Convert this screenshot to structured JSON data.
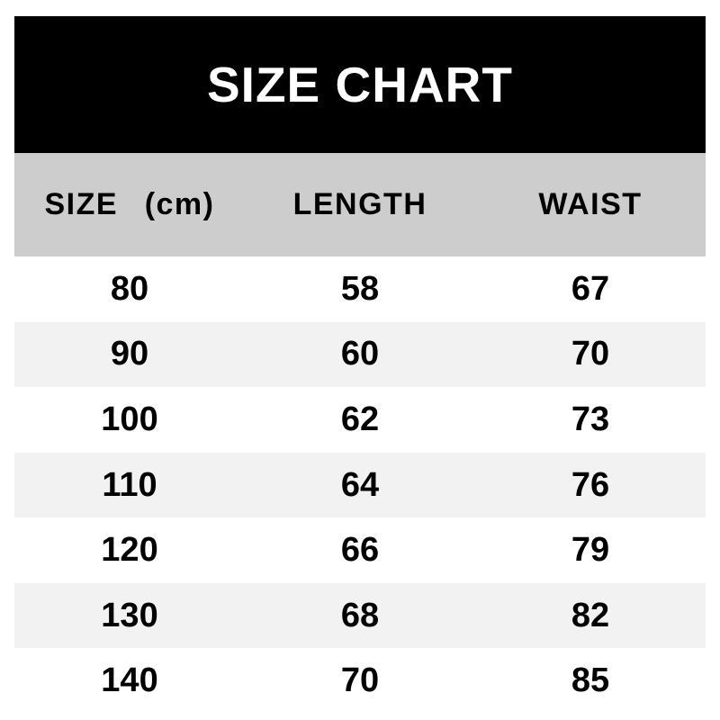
{
  "title": "SIZE CHART",
  "table": {
    "headers": [
      "SIZE (cm)",
      "LENGTH",
      "WAIST"
    ],
    "rows": [
      [
        "80",
        "58",
        "67"
      ],
      [
        "90",
        "60",
        "70"
      ],
      [
        "100",
        "62",
        "73"
      ],
      [
        "110",
        "64",
        "76"
      ],
      [
        "120",
        "66",
        "79"
      ],
      [
        "130",
        "68",
        "82"
      ],
      [
        "140",
        "70",
        "85"
      ]
    ]
  },
  "colors": {
    "page_bg": "#ffffff",
    "title_band_bg": "#000000",
    "title_text": "#ffffff",
    "header_band_bg": "#cdcdcd",
    "row_alt_bg": "#f2f2f2",
    "text": "#000000"
  },
  "chart_data": {
    "type": "table",
    "title": "SIZE CHART",
    "columns": [
      "SIZE (cm)",
      "LENGTH",
      "WAIST"
    ],
    "rows": [
      [
        80,
        58,
        67
      ],
      [
        90,
        60,
        70
      ],
      [
        100,
        62,
        73
      ],
      [
        110,
        64,
        76
      ],
      [
        120,
        66,
        79
      ],
      [
        130,
        68,
        82
      ],
      [
        140,
        70,
        85
      ]
    ],
    "layout": {
      "header_style": "gray-band",
      "row_striping": "white/light-gray alternating",
      "alignment": "center"
    }
  }
}
